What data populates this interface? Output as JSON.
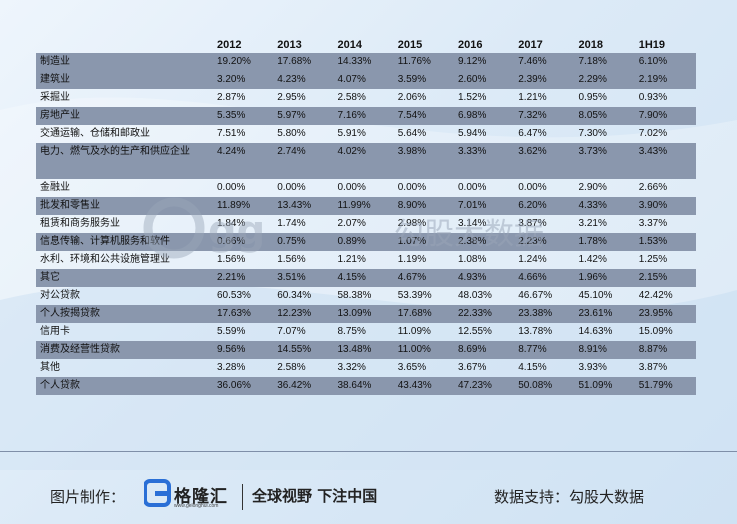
{
  "chart_data": {
    "type": "table",
    "columns": [
      "",
      "2012",
      "2013",
      "2014",
      "2015",
      "2016",
      "2017",
      "2018",
      "1H19"
    ],
    "rows": [
      {
        "label": "制造业",
        "values": [
          "19.20%",
          "17.68%",
          "14.33%",
          "11.76%",
          "9.12%",
          "7.46%",
          "7.18%",
          "6.10%"
        ]
      },
      {
        "label": "建筑业",
        "values": [
          "3.20%",
          "4.23%",
          "4.07%",
          "3.59%",
          "2.60%",
          "2.39%",
          "2.29%",
          "2.19%"
        ]
      },
      {
        "label": "采掘业",
        "values": [
          "2.87%",
          "2.95%",
          "2.58%",
          "2.06%",
          "1.52%",
          "1.21%",
          "0.95%",
          "0.93%"
        ]
      },
      {
        "label": "房地产业",
        "values": [
          "5.35%",
          "5.97%",
          "7.16%",
          "7.54%",
          "6.98%",
          "7.32%",
          "8.05%",
          "7.90%"
        ]
      },
      {
        "label": "交通运输、仓储和邮政业",
        "values": [
          "7.51%",
          "5.80%",
          "5.91%",
          "5.64%",
          "5.94%",
          "6.47%",
          "7.30%",
          "7.02%"
        ]
      },
      {
        "label": "电力、燃气及水的生产和供应企业",
        "values": [
          "4.24%",
          "2.74%",
          "4.02%",
          "3.98%",
          "3.33%",
          "3.62%",
          "3.73%",
          "3.43%"
        ]
      },
      {
        "label": "金融业",
        "values": [
          "0.00%",
          "0.00%",
          "0.00%",
          "0.00%",
          "0.00%",
          "0.00%",
          "2.90%",
          "2.66%"
        ]
      },
      {
        "label": "批发和零售业",
        "values": [
          "11.89%",
          "13.43%",
          "11.99%",
          "8.90%",
          "7.01%",
          "6.20%",
          "4.33%",
          "3.90%"
        ]
      },
      {
        "label": "租赁和商务服务业",
        "values": [
          "1.84%",
          "1.74%",
          "2.07%",
          "2.98%",
          "3.14%",
          "3.87%",
          "3.21%",
          "3.37%"
        ]
      },
      {
        "label": "信息传输、计算机服务和软件",
        "values": [
          "0.66%",
          "0.75%",
          "0.89%",
          "1.07%",
          "2.38%",
          "2.23%",
          "1.78%",
          "1.53%"
        ]
      },
      {
        "label": "水利、环境和公共设施管理业",
        "values": [
          "1.56%",
          "1.56%",
          "1.21%",
          "1.19%",
          "1.08%",
          "1.24%",
          "1.42%",
          "1.25%"
        ]
      },
      {
        "label": "其它",
        "values": [
          "2.21%",
          "3.51%",
          "4.15%",
          "4.67%",
          "4.93%",
          "4.66%",
          "1.96%",
          "2.15%"
        ]
      },
      {
        "label": "对公贷款",
        "values": [
          "60.53%",
          "60.34%",
          "58.38%",
          "53.39%",
          "48.03%",
          "46.67%",
          "45.10%",
          "42.42%"
        ]
      },
      {
        "label": "个人按揭贷款",
        "values": [
          "17.63%",
          "12.23%",
          "13.09%",
          "17.68%",
          "22.33%",
          "23.38%",
          "23.61%",
          "23.95%"
        ]
      },
      {
        "label": "信用卡",
        "values": [
          "5.59%",
          "7.07%",
          "8.75%",
          "11.09%",
          "12.55%",
          "13.78%",
          "14.63%",
          "15.09%"
        ]
      },
      {
        "label": "消费及经营性贷款",
        "values": [
          "9.56%",
          "14.55%",
          "13.48%",
          "11.00%",
          "8.69%",
          "8.77%",
          "8.91%",
          "8.87%"
        ]
      },
      {
        "label": "其他",
        "values": [
          "3.28%",
          "2.58%",
          "3.32%",
          "3.65%",
          "3.67%",
          "4.15%",
          "3.93%",
          "3.87%"
        ]
      },
      {
        "label": "个人贷款",
        "values": [
          "36.06%",
          "36.42%",
          "38.64%",
          "43.43%",
          "47.23%",
          "50.08%",
          "51.09%",
          "51.79%"
        ]
      }
    ],
    "row_shading": [
      "dark",
      "dark",
      "light",
      "dark",
      "light",
      "dark",
      "light",
      "dark",
      "light",
      "dark",
      "light",
      "dark",
      "light",
      "dark",
      "light",
      "dark",
      "light",
      "dark"
    ],
    "grid": false
  },
  "watermark": {
    "text": "勾股大数据"
  },
  "footer": {
    "left_label": "图片制作：",
    "logo_name": "格隆汇",
    "logo_url": "www.gelonghui.com",
    "slogan": "全球视野 下注中国",
    "right_label": "数据支持：勾股大数据"
  },
  "colors": {
    "dark_row": "#8a97ad",
    "background": "#dceaf7",
    "logo_blue": "#2a6fd6"
  }
}
